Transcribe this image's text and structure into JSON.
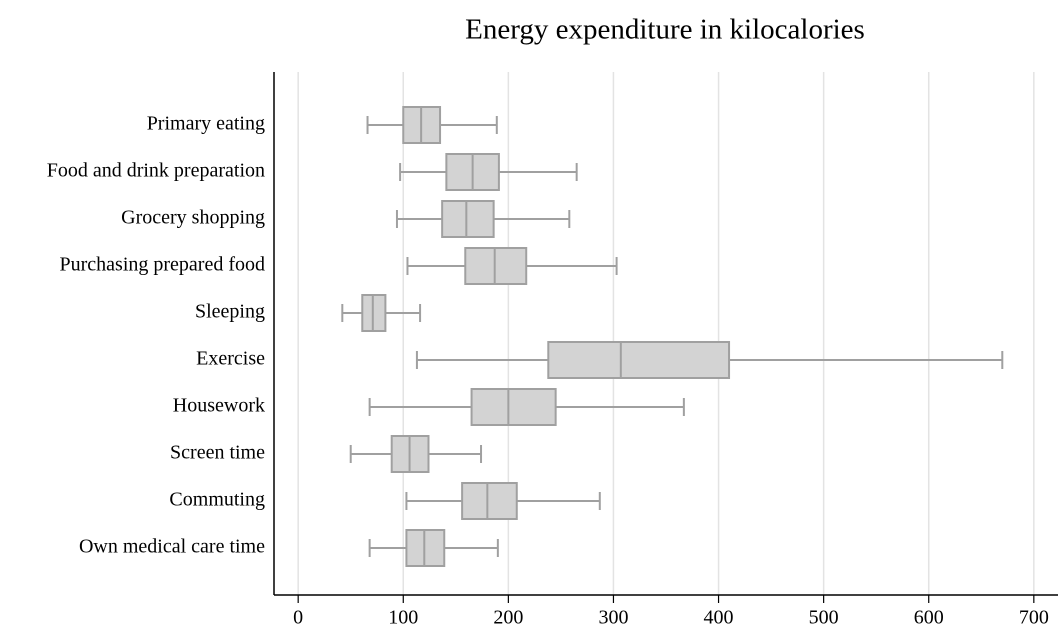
{
  "chart_data": {
    "type": "boxplot",
    "title": "Energy expenditure in kilocalories",
    "categories": [
      "Primary eating",
      "Food and drink preparation",
      "Grocery shopping",
      "Purchasing prepared food",
      "Sleeping",
      "Exercise",
      "Housework",
      "Screen time",
      "Commuting",
      "Own medical care time"
    ],
    "low": [
      66,
      97,
      94,
      104,
      42,
      113,
      68,
      50,
      103,
      68
    ],
    "q1": [
      100,
      141,
      137,
      159,
      61,
      238,
      165,
      89,
      156,
      103
    ],
    "median": [
      117,
      166,
      160,
      187,
      71,
      307,
      200,
      106,
      180,
      120
    ],
    "q3": [
      135,
      191,
      186,
      217,
      83,
      410,
      245,
      124,
      208,
      139
    ],
    "high": [
      189,
      265,
      258,
      303,
      116,
      670,
      367,
      174,
      287,
      190
    ],
    "color": "#d3d3d3",
    "edge_color": "#a0a0a0",
    "xlim": [
      -23,
      723
    ],
    "xticks": [
      0,
      100,
      200,
      300,
      400,
      500,
      600,
      700
    ],
    "grid": true
  }
}
